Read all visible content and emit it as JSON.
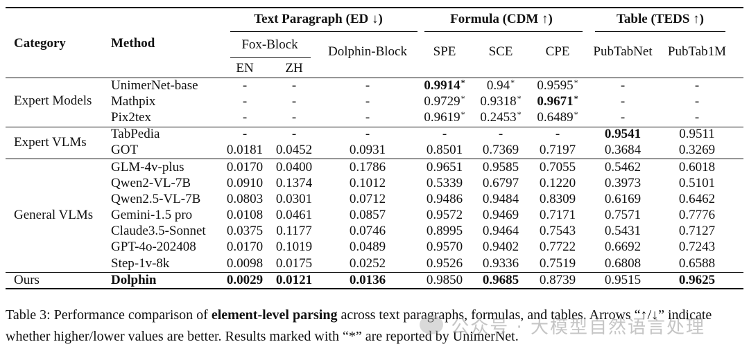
{
  "header": {
    "category": "Category",
    "method": "Method",
    "group_text": "Text Paragraph (ED ↓)",
    "group_formula": "Formula (CDM ↑)",
    "group_table": "Table (TEDS ↑)",
    "fox_block": "Fox-Block",
    "dolphin_block": "Dolphin-Block",
    "en": "EN",
    "zh": "ZH",
    "spe": "SPE",
    "sce": "SCE",
    "cpe": "CPE",
    "pubtabnet": "PubTabNet",
    "pubtab1m": "PubTab1M"
  },
  "categories": [
    {
      "label": "Expert Models"
    },
    {
      "label": "Expert VLMs"
    },
    {
      "label": "General VLMs"
    },
    {
      "label": "Ours"
    }
  ],
  "rows": [
    {
      "method": "UnimerNet-base",
      "cells": [
        "-",
        "-",
        "-",
        "0.9914",
        "0.94",
        "0.9595",
        "-",
        "-"
      ],
      "bold": [
        false,
        false,
        false,
        true,
        false,
        false,
        false,
        false
      ],
      "star": [
        false,
        false,
        false,
        true,
        true,
        true,
        false,
        false
      ]
    },
    {
      "method": "Mathpix",
      "cells": [
        "-",
        "-",
        "-",
        "0.9729",
        "0.9318",
        "0.9671",
        "-",
        "-"
      ],
      "bold": [
        false,
        false,
        false,
        false,
        false,
        true,
        false,
        false
      ],
      "star": [
        false,
        false,
        false,
        true,
        true,
        true,
        false,
        false
      ]
    },
    {
      "method": "Pix2tex",
      "cells": [
        "-",
        "-",
        "-",
        "0.9619",
        "0.2453",
        "0.6489",
        "-",
        "-"
      ],
      "bold": [
        false,
        false,
        false,
        false,
        false,
        false,
        false,
        false
      ],
      "star": [
        false,
        false,
        false,
        true,
        true,
        true,
        false,
        false
      ]
    },
    {
      "method": "TabPedia",
      "cells": [
        "-",
        "-",
        "-",
        "-",
        "-",
        "-",
        "0.9541",
        "0.9511"
      ],
      "bold": [
        false,
        false,
        false,
        false,
        false,
        false,
        true,
        false
      ],
      "star": [
        false,
        false,
        false,
        false,
        false,
        false,
        false,
        false
      ]
    },
    {
      "method": "GOT",
      "cells": [
        "0.0181",
        "0.0452",
        "0.0931",
        "0.8501",
        "0.7369",
        "0.7197",
        "0.3684",
        "0.3269"
      ],
      "bold": [
        false,
        false,
        false,
        false,
        false,
        false,
        false,
        false
      ],
      "star": [
        false,
        false,
        false,
        false,
        false,
        false,
        false,
        false
      ]
    },
    {
      "method": "GLM-4v-plus",
      "cells": [
        "0.0170",
        "0.0400",
        "0.1786",
        "0.9651",
        "0.9585",
        "0.7055",
        "0.5462",
        "0.6018"
      ],
      "bold": [
        false,
        false,
        false,
        false,
        false,
        false,
        false,
        false
      ],
      "star": [
        false,
        false,
        false,
        false,
        false,
        false,
        false,
        false
      ]
    },
    {
      "method": "Qwen2-VL-7B",
      "cells": [
        "0.0910",
        "0.1374",
        "0.1012",
        "0.5339",
        "0.6797",
        "0.1220",
        "0.3973",
        "0.5101"
      ],
      "bold": [
        false,
        false,
        false,
        false,
        false,
        false,
        false,
        false
      ],
      "star": [
        false,
        false,
        false,
        false,
        false,
        false,
        false,
        false
      ]
    },
    {
      "method": "Qwen2.5-VL-7B",
      "cells": [
        "0.0803",
        "0.0301",
        "0.0712",
        "0.9486",
        "0.9484",
        "0.8309",
        "0.6169",
        "0.6462"
      ],
      "bold": [
        false,
        false,
        false,
        false,
        false,
        false,
        false,
        false
      ],
      "star": [
        false,
        false,
        false,
        false,
        false,
        false,
        false,
        false
      ]
    },
    {
      "method": "Gemini-1.5 pro",
      "cells": [
        "0.0108",
        "0.0461",
        "0.0857",
        "0.9572",
        "0.9469",
        "0.7171",
        "0.7571",
        "0.7776"
      ],
      "bold": [
        false,
        false,
        false,
        false,
        false,
        false,
        false,
        false
      ],
      "star": [
        false,
        false,
        false,
        false,
        false,
        false,
        false,
        false
      ]
    },
    {
      "method": "Claude3.5-Sonnet",
      "cells": [
        "0.0375",
        "0.1177",
        "0.0746",
        "0.8995",
        "0.9464",
        "0.7543",
        "0.5431",
        "0.7127"
      ],
      "bold": [
        false,
        false,
        false,
        false,
        false,
        false,
        false,
        false
      ],
      "star": [
        false,
        false,
        false,
        false,
        false,
        false,
        false,
        false
      ]
    },
    {
      "method": "GPT-4o-202408",
      "cells": [
        "0.0170",
        "0.1019",
        "0.0489",
        "0.9570",
        "0.9402",
        "0.7722",
        "0.6692",
        "0.7243"
      ],
      "bold": [
        false,
        false,
        false,
        false,
        false,
        false,
        false,
        false
      ],
      "star": [
        false,
        false,
        false,
        false,
        false,
        false,
        false,
        false
      ]
    },
    {
      "method": "Step-1v-8k",
      "cells": [
        "0.0098",
        "0.0175",
        "0.0252",
        "0.9526",
        "0.9336",
        "0.7519",
        "0.6808",
        "0.6588"
      ],
      "bold": [
        false,
        false,
        false,
        false,
        false,
        false,
        false,
        false
      ],
      "star": [
        false,
        false,
        false,
        false,
        false,
        false,
        false,
        false
      ]
    },
    {
      "method": "Dolphin",
      "method_bold": true,
      "cells": [
        "0.0029",
        "0.0121",
        "0.0136",
        "0.9850",
        "0.9685",
        "0.8739",
        "0.9515",
        "0.9625"
      ],
      "bold": [
        true,
        true,
        true,
        false,
        true,
        false,
        false,
        true
      ],
      "star": [
        false,
        false,
        false,
        false,
        false,
        false,
        false,
        false
      ]
    }
  ],
  "caption": {
    "prefix": "Table 3:  Performance comparison of ",
    "bold": "element-level parsing",
    "suffix": " across text paragraphs, formulas, and tables. Arrows “↑/↓” indicate whether higher/lower values are better. Results marked with “*” are reported by UnimerNet."
  },
  "watermark": "公众号 · 大模型自然语言处理"
}
